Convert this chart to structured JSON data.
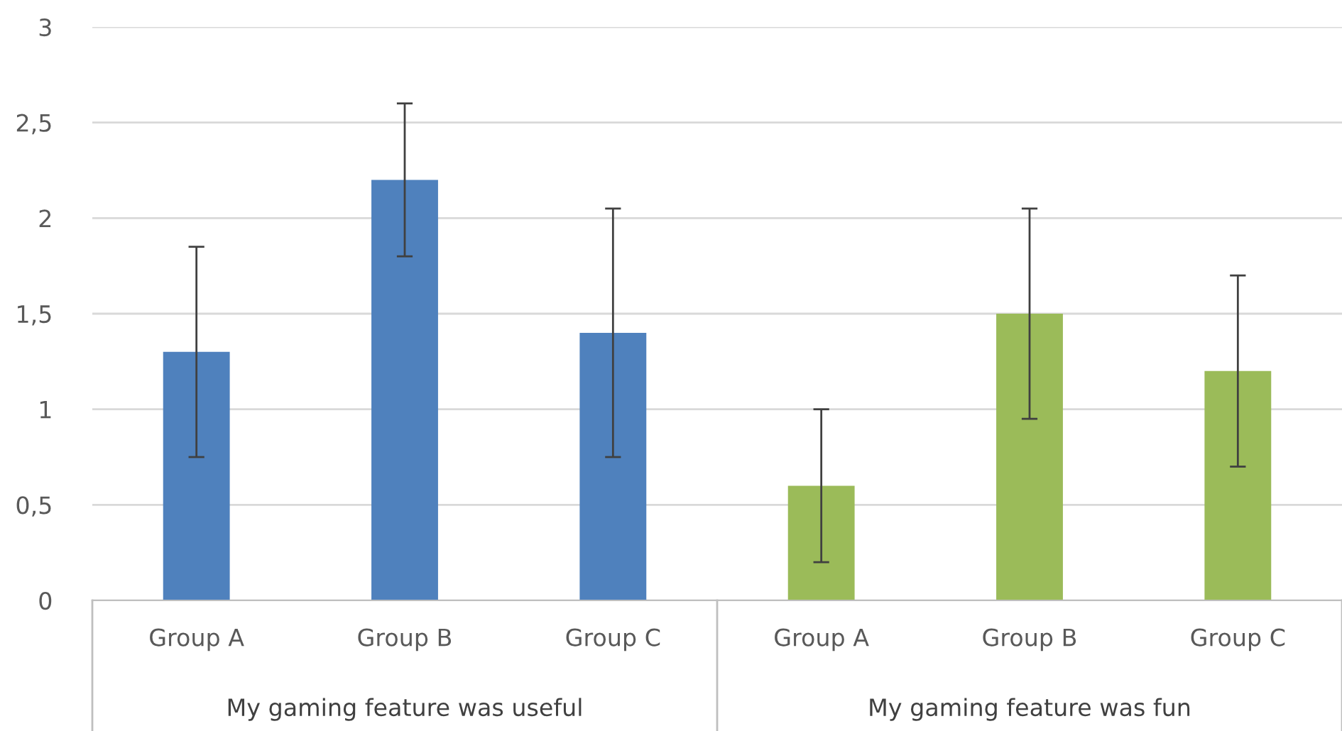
{
  "chart_data": {
    "type": "bar",
    "categories": [
      "Group A",
      "Group B",
      "Group C",
      "Group A",
      "Group B",
      "Group C"
    ],
    "values": [
      1.3,
      2.2,
      1.4,
      0.6,
      1.5,
      1.2
    ],
    "colors": [
      "#4f81bd",
      "#4f81bd",
      "#4f81bd",
      "#9bbb59",
      "#9bbb59",
      "#9bbb59"
    ],
    "errors": [
      0.55,
      0.4,
      0.65,
      0.4,
      0.55,
      0.5
    ],
    "ylim": [
      0,
      3
    ],
    "yticks": [
      0,
      {
        "value": 0.5,
        "label": "0,5"
      },
      1,
      {
        "value": 1.5,
        "label": "1,5"
      },
      2,
      {
        "value": 2.5,
        "label": "2,5"
      },
      3
    ],
    "annotations": [
      "My gaming feature was useful",
      "My gaming feature was fun"
    ],
    "grid": "y",
    "legend": false
  }
}
